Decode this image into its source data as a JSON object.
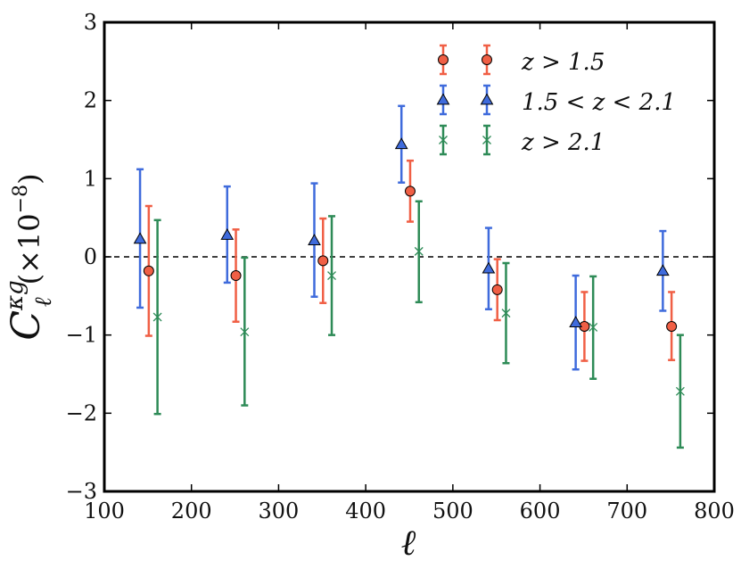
{
  "chart_data": {
    "type": "scatter",
    "title": "",
    "xlabel": "ℓ",
    "ylabel": {
      "symbol": "C",
      "superscript": "κg",
      "subscript": "ℓ",
      "scale": "(×10",
      "scale_exponent": "−8",
      "scale_close": ")"
    },
    "xlim": [
      100,
      800
    ],
    "ylim": [
      -3,
      3
    ],
    "xticks": [
      100,
      200,
      300,
      400,
      500,
      600,
      700,
      800
    ],
    "yticks": [
      -3,
      -2,
      -1,
      0,
      1,
      2,
      3
    ],
    "xtick_labels": [
      "100",
      "200",
      "300",
      "400",
      "500",
      "600",
      "700",
      "800"
    ],
    "ytick_labels": [
      "−3",
      "−2",
      "−1",
      "0",
      "1",
      "2",
      "3"
    ],
    "reference_line": {
      "y": 0,
      "style": "dashed"
    },
    "grid": false,
    "legend_position": "top-right",
    "series": [
      {
        "name": "z > 1.5",
        "marker": "circle",
        "color": "#f05f45",
        "x": [
          151,
          251,
          351,
          451,
          551,
          651,
          751
        ],
        "y": [
          -0.18,
          -0.24,
          -0.05,
          0.84,
          -0.42,
          -0.89,
          -0.89
        ],
        "err_low": [
          -1.01,
          -0.83,
          -0.59,
          0.45,
          -0.81,
          -1.33,
          -1.32
        ],
        "err_high": [
          0.65,
          0.35,
          0.49,
          1.23,
          -0.03,
          -0.45,
          -0.45
        ]
      },
      {
        "name": "1.5 < z < 2.1",
        "marker": "triangle",
        "color": "#3f6bdc",
        "x": [
          141,
          241,
          341,
          441,
          541,
          641,
          741
        ],
        "y": [
          0.23,
          0.28,
          0.21,
          1.44,
          -0.15,
          -0.84,
          -0.18
        ],
        "err_low": [
          -0.65,
          -0.33,
          -0.51,
          0.95,
          -0.67,
          -1.44,
          -0.69
        ],
        "err_high": [
          1.12,
          0.9,
          0.94,
          1.93,
          0.37,
          -0.24,
          0.33
        ]
      },
      {
        "name": "z > 2.1",
        "marker": "x",
        "color": "#2e8b57",
        "x": [
          161,
          261,
          361,
          461,
          561,
          661,
          761
        ],
        "y": [
          -0.77,
          -0.96,
          -0.24,
          0.07,
          -0.72,
          -0.9,
          -1.72
        ],
        "err_low": [
          -2.01,
          -1.9,
          -1.0,
          -0.58,
          -1.36,
          -1.56,
          -2.44
        ],
        "err_high": [
          0.47,
          -0.01,
          0.52,
          0.71,
          -0.08,
          -0.25,
          -1.0
        ]
      }
    ]
  },
  "legend": {
    "labels": [
      "z > 1.5",
      "1.5 < z < 2.1",
      "z > 2.1"
    ]
  }
}
